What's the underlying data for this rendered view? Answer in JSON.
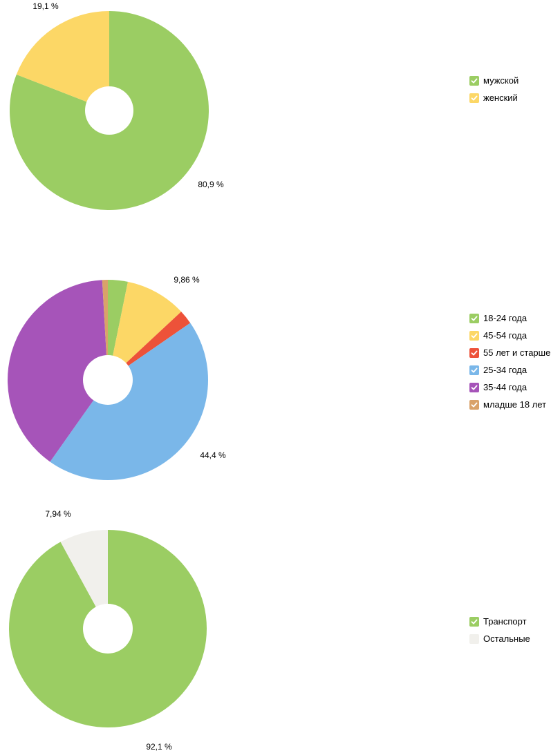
{
  "chart_data": [
    {
      "type": "pie",
      "title": "",
      "series": [
        {
          "name": "мужской",
          "value": 80.9,
          "color": "#9bcd63",
          "checked": true
        },
        {
          "name": "женский",
          "value": 19.1,
          "color": "#fcd766",
          "checked": true
        }
      ],
      "labels": [
        {
          "series": "мужской",
          "text": "80,9 %"
        },
        {
          "series": "женский",
          "text": "19,1 %"
        }
      ],
      "legend": "right",
      "donut": true
    },
    {
      "type": "pie",
      "title": "",
      "series": [
        {
          "name": "18-24 года",
          "value": 3.2,
          "color": "#9bcd63",
          "checked": true
        },
        {
          "name": "45-54 года",
          "value": 9.86,
          "color": "#fcd766",
          "checked": true
        },
        {
          "name": "55 лет и старше",
          "value": 2.3,
          "color": "#ed5239",
          "checked": true
        },
        {
          "name": "25-34 года",
          "value": 44.4,
          "color": "#7ab7e9",
          "checked": true
        },
        {
          "name": "35-44 года",
          "value": 39.3,
          "color": "#a654b9",
          "checked": true
        },
        {
          "name": "младше 18 лет",
          "value": 0.9,
          "color": "#d9a26a",
          "checked": true
        }
      ],
      "labels": [
        {
          "series": "45-54 года",
          "text": "9,86 %"
        },
        {
          "series": "25-34 года",
          "text": "44,4 %"
        }
      ],
      "legend": "right",
      "donut": true
    },
    {
      "type": "pie",
      "title": "",
      "series": [
        {
          "name": "Транспорт",
          "value": 92.1,
          "color": "#9bcd63",
          "checked": true
        },
        {
          "name": "Остальные",
          "value": 7.94,
          "color": "#f1f0ec",
          "checked": false
        }
      ],
      "labels": [
        {
          "series": "Транспорт",
          "text": "92,1 %"
        },
        {
          "series": "Остальные",
          "text": "7,94 %"
        }
      ],
      "legend": "right",
      "donut": true
    }
  ]
}
